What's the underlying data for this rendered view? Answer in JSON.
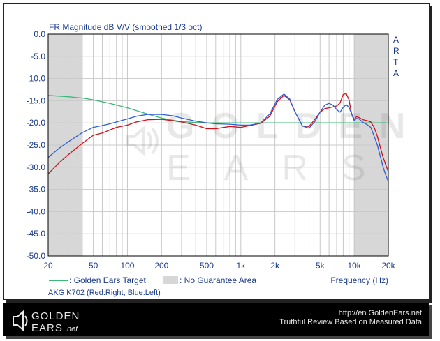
{
  "chart_data": {
    "type": "line",
    "title": "FR Magnitude dB V/V (smoothed 1/3 oct)",
    "side_label": "ARTA",
    "xlabel": "Frequency (Hz)",
    "ylabel": "",
    "x_scale": "log",
    "xlim": [
      20,
      20000
    ],
    "ylim": [
      -50,
      0
    ],
    "x_ticks": [
      20,
      50,
      100,
      200,
      500,
      1000,
      2000,
      5000,
      10000,
      20000
    ],
    "x_tick_labels": [
      "20",
      "50",
      "100",
      "200",
      "500",
      "1k",
      "2k",
      "5k",
      "10k",
      "20k"
    ],
    "y_ticks": [
      0,
      -5,
      -10,
      -15,
      -20,
      -25,
      -30,
      -35,
      -40,
      -45,
      -50
    ],
    "y_tick_labels": [
      "0.0",
      "-5.0",
      "-10.0",
      "-15.0",
      "-20.0",
      "-25.0",
      "-30.0",
      "-35.0",
      "-40.0",
      "-45.0",
      "-50.0"
    ],
    "grid": true,
    "no_guarantee_areas": [
      [
        20,
        40
      ],
      [
        10000,
        20000
      ]
    ],
    "series": [
      {
        "name": "Golden Ears Target",
        "color": "#3cb878",
        "x": [
          20,
          30,
          40,
          50,
          70,
          100,
          150,
          200,
          250,
          300,
          400,
          500,
          1000,
          2000,
          5000,
          10000,
          15000,
          20000
        ],
        "y": [
          -13.8,
          -14.1,
          -14.4,
          -14.8,
          -15.6,
          -16.6,
          -18.0,
          -18.9,
          -19.4,
          -19.7,
          -19.9,
          -20.0,
          -20.0,
          -20.0,
          -20.0,
          -20.0,
          -20.0,
          -20.0
        ]
      },
      {
        "name": "Right",
        "color": "#d0101a",
        "x": [
          20,
          25,
          30,
          40,
          50,
          60,
          70,
          80,
          100,
          120,
          150,
          200,
          250,
          300,
          400,
          500,
          600,
          800,
          1000,
          1200,
          1500,
          1800,
          2100,
          2400,
          2700,
          3000,
          3500,
          4000,
          4500,
          5000,
          5500,
          6000,
          6500,
          7000,
          7500,
          8000,
          8500,
          9000,
          9500,
          10000,
          10500,
          11000,
          12000,
          13000,
          14000,
          15000,
          16000,
          17000,
          18000,
          19000,
          20000
        ],
        "y": [
          -31.5,
          -29.0,
          -27.2,
          -24.6,
          -22.8,
          -22.3,
          -21.6,
          -21.0,
          -20.5,
          -19.8,
          -19.3,
          -19.2,
          -19.5,
          -19.8,
          -20.5,
          -21.3,
          -21.3,
          -20.8,
          -21.0,
          -20.6,
          -20.1,
          -18.5,
          -15.2,
          -13.8,
          -14.8,
          -17.5,
          -20.7,
          -20.8,
          -19.2,
          -17.6,
          -16.8,
          -16.6,
          -16.4,
          -16.2,
          -15.5,
          -13.6,
          -13.4,
          -14.8,
          -18.0,
          -19.2,
          -18.6,
          -18.8,
          -19.3,
          -19.5,
          -19.8,
          -21.0,
          -23.0,
          -25.5,
          -27.8,
          -29.5,
          -31.0
        ]
      },
      {
        "name": "Left",
        "color": "#2a5fd8",
        "x": [
          20,
          25,
          30,
          40,
          50,
          60,
          70,
          80,
          100,
          120,
          150,
          200,
          250,
          300,
          400,
          500,
          600,
          800,
          1000,
          1200,
          1500,
          1800,
          2100,
          2400,
          2700,
          3000,
          3500,
          4000,
          4500,
          5000,
          5500,
          6000,
          6500,
          7000,
          7500,
          8000,
          8500,
          9000,
          9500,
          10000,
          10500,
          11000,
          12000,
          13000,
          14000,
          15000,
          16000,
          17000,
          18000,
          19000,
          20000
        ],
        "y": [
          -27.8,
          -25.7,
          -24.3,
          -22.2,
          -21.0,
          -20.6,
          -20.2,
          -19.8,
          -19.1,
          -18.5,
          -18.1,
          -18.1,
          -18.4,
          -18.9,
          -19.6,
          -20.0,
          -20.2,
          -20.3,
          -20.5,
          -20.5,
          -20.0,
          -18.0,
          -14.7,
          -13.5,
          -14.6,
          -17.5,
          -20.7,
          -21.2,
          -19.7,
          -17.6,
          -16.0,
          -15.6,
          -16.0,
          -17.0,
          -17.6,
          -16.5,
          -15.9,
          -16.5,
          -18.0,
          -19.5,
          -19.0,
          -19.1,
          -19.9,
          -20.4,
          -21.0,
          -23.0,
          -25.0,
          -27.5,
          -30.0,
          -31.8,
          -33.2
        ]
      }
    ],
    "legend": {
      "placement": "bottom",
      "target_label": ": Golden Ears Target",
      "area_label": ": No Guarantee Area",
      "model_label": "AKG K702 (Red:Right, Blue:Left)"
    }
  },
  "footer": {
    "logo_top": "GOLDEN",
    "logo_bottom": "EARS",
    "logo_suffix": ".net",
    "url": "http://en.GoldenEars.net",
    "tagline": "Truthful Review Based on Measured Data"
  },
  "watermark": {
    "line1": "GOLDEN",
    "line2": "EARS"
  },
  "colors": {
    "grid": "#c8c8c8",
    "shade": "#d7d7d7",
    "axis": "#000000",
    "text_blue": "#1a3a8a"
  }
}
